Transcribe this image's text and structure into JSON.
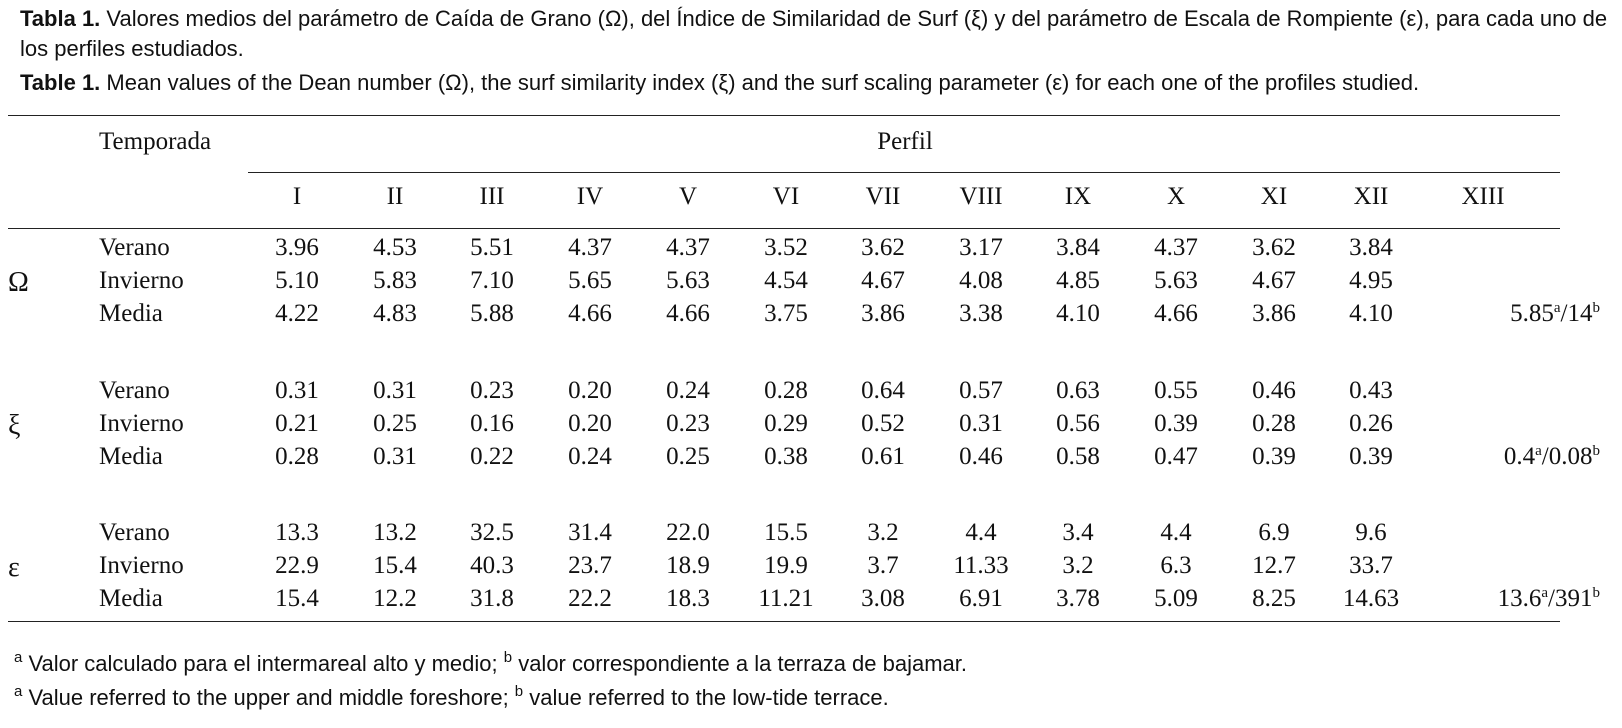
{
  "caption": {
    "es_label": "Tabla 1.",
    "es_text": "Valores medios del parámetro de Caída de Grano (Ω), del Índice de Similaridad de Surf (ξ) y del parámetro de Escala de Rompiente (ε), para cada uno de los perfiles estudiados.",
    "en_label": "Table 1.",
    "en_text": "Mean values of the Dean number (Ω), the surf similarity index (ξ) and the surf scaling parameter (ε) for each one of the profiles studied."
  },
  "table": {
    "header_temporada": "Temporada",
    "header_perfil": "Perfil",
    "profiles": [
      "I",
      "II",
      "III",
      "IV",
      "V",
      "VI",
      "VII",
      "VIII",
      "IX",
      "X",
      "XI",
      "XII",
      "XIII"
    ],
    "groups": [
      {
        "symbol": "Ω",
        "rows": [
          {
            "label": "Verano",
            "values": [
              "3.96",
              "4.53",
              "5.51",
              "4.37",
              "4.37",
              "3.52",
              "3.62",
              "3.17",
              "3.84",
              "4.37",
              "3.62",
              "3.84"
            ],
            "xiii": {
              "a": "",
              "b": ""
            }
          },
          {
            "label": "Invierno",
            "values": [
              "5.10",
              "5.83",
              "7.10",
              "5.65",
              "5.63",
              "4.54",
              "4.67",
              "4.08",
              "4.85",
              "5.63",
              "4.67",
              "4.95"
            ],
            "xiii": {
              "a": "",
              "b": ""
            }
          },
          {
            "label": "Media",
            "values": [
              "4.22",
              "4.83",
              "5.88",
              "4.66",
              "4.66",
              "3.75",
              "3.86",
              "3.38",
              "4.10",
              "4.66",
              "3.86",
              "4.10"
            ],
            "xiii": {
              "a": "5.85",
              "b": "14"
            }
          }
        ]
      },
      {
        "symbol": "ξ",
        "rows": [
          {
            "label": "Verano",
            "values": [
              "0.31",
              "0.31",
              "0.23",
              "0.20",
              "0.24",
              "0.28",
              "0.64",
              "0.57",
              "0.63",
              "0.55",
              "0.46",
              "0.43"
            ],
            "xiii": {
              "a": "",
              "b": ""
            }
          },
          {
            "label": "Invierno",
            "values": [
              "0.21",
              "0.25",
              "0.16",
              "0.20",
              "0.23",
              "0.29",
              "0.52",
              "0.31",
              "0.56",
              "0.39",
              "0.28",
              "0.26"
            ],
            "xiii": {
              "a": "",
              "b": ""
            }
          },
          {
            "label": "Media",
            "values": [
              "0.28",
              "0.31",
              "0.22",
              "0.24",
              "0.25",
              "0.38",
              "0.61",
              "0.46",
              "0.58",
              "0.47",
              "0.39",
              "0.39"
            ],
            "xiii": {
              "a": "0.4",
              "b": "0.08"
            }
          }
        ]
      },
      {
        "symbol": "ε",
        "rows": [
          {
            "label": "Verano",
            "values": [
              "13.3",
              "13.2",
              "32.5",
              "31.4",
              "22.0",
              "15.5",
              "3.2",
              "4.4",
              "3.4",
              "4.4",
              "6.9",
              "9.6"
            ],
            "xiii": {
              "a": "",
              "b": ""
            }
          },
          {
            "label": "Invierno",
            "values": [
              "22.9",
              "15.4",
              "40.3",
              "23.7",
              "18.9",
              "19.9",
              "3.7",
              "11.33",
              "3.2",
              "6.3",
              "12.7",
              "33.7"
            ],
            "xiii": {
              "a": "",
              "b": ""
            }
          },
          {
            "label": "Media",
            "values": [
              "15.4",
              "12.2",
              "31.8",
              "22.2",
              "18.3",
              "11.21",
              "3.08",
              "6.91",
              "3.78",
              "5.09",
              "8.25",
              "14.63"
            ],
            "xiii": {
              "a": "13.6",
              "b": "391"
            }
          }
        ]
      }
    ]
  },
  "footnotes": {
    "es": {
      "a_mark": "a",
      "a_text": " Valor calculado para el intermareal alto y medio; ",
      "b_mark": "b",
      "b_text": " valor correspondiente a la terraza de bajamar."
    },
    "en": {
      "a_mark": "a",
      "a_text": " Value referred to the upper and middle foreshore; ",
      "b_mark": "b",
      "b_text": " value referred to the low-tide terrace."
    }
  }
}
